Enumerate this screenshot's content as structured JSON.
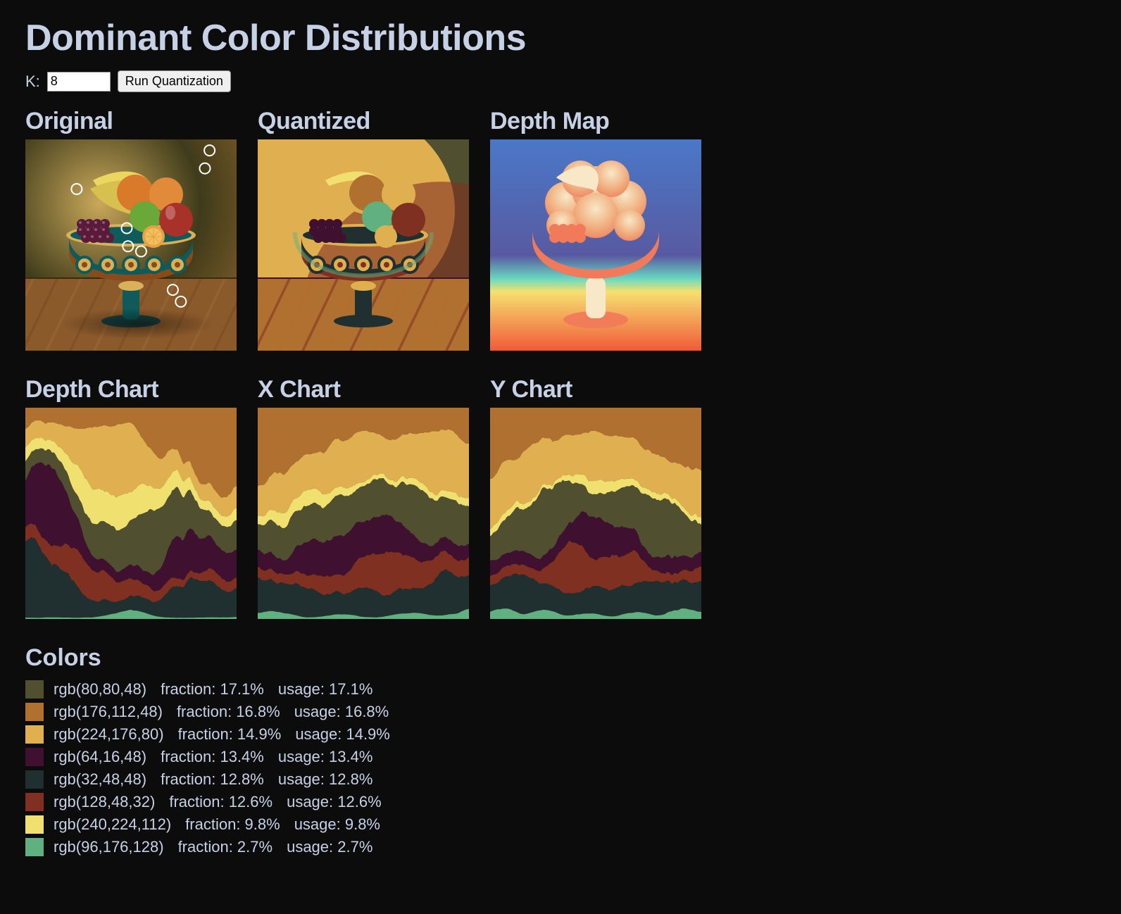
{
  "page": {
    "title": "Dominant Color Distributions",
    "background": "#0c0c0c",
    "text_color": "#c7d1e6"
  },
  "controls": {
    "k_label": "K:",
    "k_value": "8",
    "run_label": "Run Quantization"
  },
  "panels": {
    "original": {
      "title": "Original"
    },
    "quantized": {
      "title": "Quantized"
    },
    "depth_map": {
      "title": "Depth Map"
    },
    "depth_chart": {
      "title": "Depth Chart"
    },
    "x_chart": {
      "title": "X Chart"
    },
    "y_chart": {
      "title": "Y Chart"
    }
  },
  "thumb_size": 300,
  "palette": [
    {
      "rgb": "rgb(80,80,48)",
      "hex": "#505030",
      "fraction": "17.1%",
      "usage": "17.1%"
    },
    {
      "rgb": "rgb(176,112,48)",
      "hex": "#b07030",
      "fraction": "16.8%",
      "usage": "16.8%"
    },
    {
      "rgb": "rgb(224,176,80)",
      "hex": "#e0b050",
      "fraction": "14.9%",
      "usage": "14.9%"
    },
    {
      "rgb": "rgb(64,16,48)",
      "hex": "#401030",
      "fraction": "13.4%",
      "usage": "13.4%"
    },
    {
      "rgb": "rgb(32,48,48)",
      "hex": "#203030",
      "fraction": "12.8%",
      "usage": "12.8%"
    },
    {
      "rgb": "rgb(128,48,32)",
      "hex": "#803020",
      "fraction": "12.6%",
      "usage": "12.6%"
    },
    {
      "rgb": "rgb(240,224,112)",
      "hex": "#f0e070",
      "fraction": "9.8%",
      "usage": "9.8%"
    },
    {
      "rgb": "rgb(96,176,128)",
      "hex": "#60b080",
      "fraction": "2.7%",
      "usage": "2.7%"
    }
  ],
  "colors_heading": "Colors",
  "fraction_label": "fraction:",
  "usage_label": "usage:",
  "original_markers": [
    {
      "x": 0.872,
      "y": 0.052
    },
    {
      "x": 0.85,
      "y": 0.137
    },
    {
      "x": 0.243,
      "y": 0.235
    },
    {
      "x": 0.48,
      "y": 0.42
    },
    {
      "x": 0.486,
      "y": 0.506
    },
    {
      "x": 0.548,
      "y": 0.53
    },
    {
      "x": 0.698,
      "y": 0.712
    },
    {
      "x": 0.736,
      "y": 0.768
    }
  ],
  "original_scene": {
    "bg_gradient": [
      "#3f3b1a",
      "#c9a85a",
      "#7a5a28"
    ],
    "floor_color": "#8b5a2b",
    "bowl_colors": [
      "#0f5a5a",
      "#d8b15a",
      "#8a4a1a"
    ],
    "pedestal_color": "#0f5a5a",
    "fruits": [
      {
        "type": "banana",
        "color": "#e9d760"
      },
      {
        "type": "orange",
        "color": "#d87a2a"
      },
      {
        "type": "orange",
        "color": "#e08a3a"
      },
      {
        "type": "apple_green",
        "color": "#6aa83a"
      },
      {
        "type": "apple_red",
        "color": "#a8322a"
      },
      {
        "type": "half_orange",
        "color": "#e8a040",
        "inner": "#f0c060"
      },
      {
        "type": "grapes",
        "color": "#5a1a3a"
      }
    ]
  },
  "depth_map_gradient": {
    "sky_top": "#4a78c8",
    "sky_mid": "#585aa0",
    "horizon": "#6ad8c0",
    "ground_top": "#f6e070",
    "ground_bottom": "#f05a3a",
    "bowl": "#f07a5a",
    "fruit_near": "#f8e8c8",
    "fruit_far": "#f0b080"
  },
  "stacked_chart_style": {
    "order_top_to_bottom": [
      "#b07030",
      "#e0b050",
      "#f0e070",
      "#505030",
      "#401030",
      "#803020",
      "#203030",
      "#60b080"
    ],
    "noise_amplitude": 0.1,
    "noise_octaves": 5
  }
}
